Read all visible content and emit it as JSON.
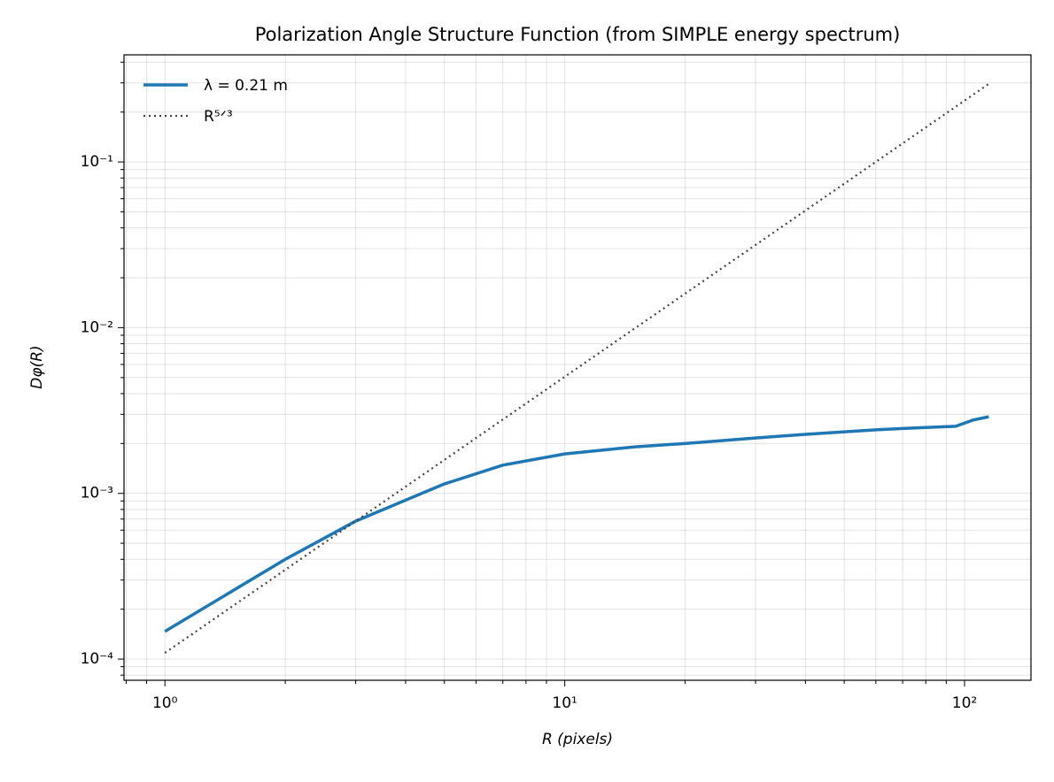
{
  "chart_data": {
    "type": "line",
    "title": "Polarization Angle Structure Function (from SIMPLE energy spectrum)",
    "xlabel": "R (pixels)",
    "ylabel": "Dφ(R)",
    "xscale": "log",
    "yscale": "log",
    "grid": "both",
    "legend": "upper left",
    "xlim": [
      0.79,
      146.6
    ],
    "ylim": [
      7.45e-05,
      0.443
    ],
    "xticks": [
      {
        "value": 1,
        "label": "10⁰"
      },
      {
        "value": 10,
        "label": "10¹"
      },
      {
        "value": 100,
        "label": "10²"
      }
    ],
    "yticks": [
      {
        "value": 0.0001,
        "label": "10⁻⁴"
      },
      {
        "value": 0.001,
        "label": "10⁻³"
      },
      {
        "value": 0.01,
        "label": "10⁻²"
      },
      {
        "value": 0.1,
        "label": "10⁻¹"
      }
    ],
    "xminorticks": [
      0.8,
      0.9,
      2,
      3,
      4,
      5,
      6,
      7,
      8,
      9,
      20,
      30,
      40,
      50,
      60,
      70,
      80,
      90
    ],
    "yminorticks": [
      8e-05,
      9e-05,
      0.0002,
      0.0003,
      0.0004,
      0.0005,
      0.0006,
      0.0007,
      0.0008,
      0.0009,
      0.002,
      0.003,
      0.004,
      0.005,
      0.006,
      0.007,
      0.008,
      0.009,
      0.02,
      0.03,
      0.04,
      0.05,
      0.06,
      0.07,
      0.08,
      0.09,
      0.2,
      0.3,
      0.4
    ],
    "series": [
      {
        "name": "λ = 0.21 m",
        "color": "#1f77b4",
        "style": "solid",
        "x": [
          1,
          2,
          3,
          4,
          5,
          7,
          10,
          15,
          20,
          30,
          40,
          60,
          80,
          95,
          105,
          115
        ],
        "values": [
          0.000147,
          0.0004,
          0.00068,
          0.00091,
          0.00114,
          0.00148,
          0.00173,
          0.00191,
          0.002,
          0.00216,
          0.00227,
          0.00242,
          0.0025,
          0.00254,
          0.00277,
          0.0029
        ]
      },
      {
        "name": "R⁵ᐟ³",
        "color": "#444444",
        "style": "dotted",
        "x": [
          1,
          115
        ],
        "values": [
          0.000109,
          0.296
        ]
      }
    ]
  }
}
